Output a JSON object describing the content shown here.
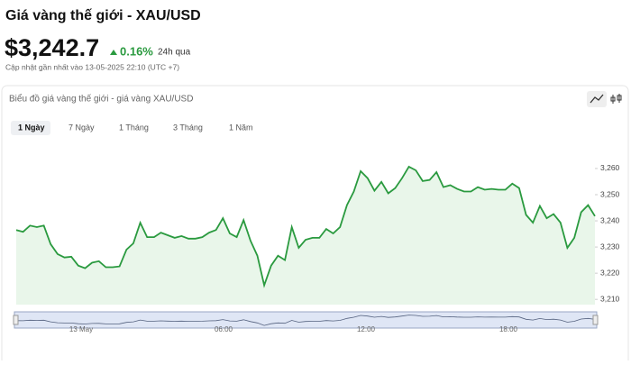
{
  "header": {
    "title": "Giá vàng thế giới - XAU/USD",
    "price": "$3,242.7",
    "change": "0.16%",
    "period": "24h qua",
    "updated": "Cập nhật gần nhất vào 13-05-2025 22:10 (UTC +7)"
  },
  "chart_card": {
    "title": "Biểu đồ giá vàng thế giới - giá vàng XAU/USD",
    "ranges": [
      "1 Ngày",
      "7 Ngày",
      "1 Tháng",
      "3 Tháng",
      "1 Năm"
    ],
    "active_range": 0
  },
  "chart_data": {
    "type": "line",
    "color": "#2a9a3f",
    "area_color": "#e9f6ea",
    "values": [
      3236.5,
      3235.8,
      3238.2,
      3237.6,
      3238.2,
      3231.1,
      3227.3,
      3226,
      3226.3,
      3222.9,
      3221.9,
      3224,
      3224.6,
      3222.3,
      3222.3,
      3222.6,
      3229,
      3231.4,
      3239.3,
      3233.8,
      3233.8,
      3235.5,
      3234.5,
      3233.5,
      3234.2,
      3233.2,
      3233.2,
      3233.8,
      3235.5,
      3236.5,
      3241,
      3235.2,
      3233.8,
      3240.3,
      3232.4,
      3226.7,
      3215.4,
      3222.9,
      3226.7,
      3225,
      3237.6,
      3229.7,
      3232.8,
      3233.5,
      3233.5,
      3236.9,
      3235.2,
      3237.6,
      3246,
      3251.2,
      3259,
      3256.3,
      3251.5,
      3254.9,
      3250.5,
      3252.5,
      3256.3,
      3260.7,
      3259.3,
      3255.2,
      3255.6,
      3258.6,
      3252.9,
      3253.6,
      3252.2,
      3251.2,
      3251.2,
      3252.9,
      3251.9,
      3252.2,
      3251.9,
      3251.9,
      3254.2,
      3252.5,
      3242.3,
      3239.3,
      3245.7,
      3241,
      3242.6,
      3239.3,
      3229.7,
      3233.5,
      3243.3,
      3246,
      3241.8
    ],
    "ylim": [
      3208,
      3271
    ],
    "yticks": [
      {
        "value": 3210,
        "label": "3,210"
      },
      {
        "value": 3220,
        "label": "3,220"
      },
      {
        "value": 3230,
        "label": "3,230"
      },
      {
        "value": 3240,
        "label": "3,240"
      },
      {
        "value": 3250,
        "label": "3,250"
      },
      {
        "value": 3260,
        "label": "3,260"
      }
    ],
    "navigator_labels": [
      "13 May",
      "06:00",
      "12:00",
      "18:00"
    ]
  }
}
